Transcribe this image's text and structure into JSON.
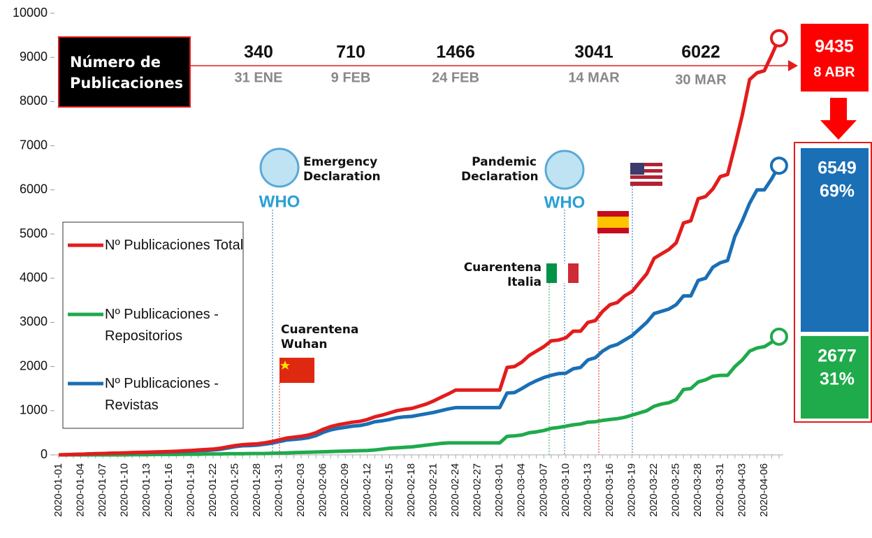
{
  "chart_data": {
    "type": "line",
    "title": "Número de Publicaciones",
    "categories": [
      "2020-01-01",
      null,
      null,
      "2020-01-04",
      null,
      null,
      "2020-01-07",
      null,
      null,
      "2020-01-10",
      null,
      null,
      "2020-01-13",
      null,
      null,
      "2020-01-16",
      null,
      null,
      "2020-01-19",
      null,
      null,
      "2020-01-22",
      null,
      null,
      "2020-01-25",
      null,
      null,
      "2020-01-28",
      null,
      null,
      "2020-01-31",
      null,
      null,
      "2020-02-03",
      null,
      null,
      "2020-02-06",
      null,
      null,
      "2020-02-09",
      null,
      null,
      "2020-02-12",
      null,
      null,
      "2020-02-15",
      null,
      null,
      "2020-02-18",
      null,
      null,
      "2020-02-21",
      null,
      null,
      "2020-02-24",
      null,
      null,
      "2020-02-27",
      null,
      null,
      "2020-03-01",
      null,
      null,
      "2020-03-04",
      null,
      null,
      "2020-03-07",
      null,
      null,
      "2020-03-10",
      null,
      null,
      "2020-03-13",
      null,
      null,
      "2020-03-16",
      null,
      null,
      "2020-03-19",
      null,
      null,
      "2020-03-22",
      null,
      null,
      "2020-03-25",
      null,
      null,
      "2020-03-28",
      null,
      null,
      "2020-03-31",
      null,
      null,
      "2020-04-03",
      null,
      null,
      "2020-04-06",
      null,
      null
    ],
    "series": [
      {
        "name": "Nº Publicaciones Total",
        "color": "#e31c1c",
        "values": [
          0,
          5,
          10,
          15,
          20,
          25,
          30,
          35,
          40,
          45,
          50,
          55,
          60,
          65,
          70,
          75,
          80,
          90,
          100,
          110,
          120,
          130,
          150,
          180,
          210,
          230,
          240,
          250,
          270,
          300,
          340,
          380,
          400,
          420,
          450,
          500,
          580,
          640,
          680,
          710,
          740,
          760,
          800,
          860,
          900,
          950,
          1000,
          1030,
          1050,
          1100,
          1150,
          1220,
          1300,
          1380,
          1466,
          1466,
          1466,
          1466,
          1466,
          1466,
          1466,
          1980,
          2000,
          2100,
          2250,
          2350,
          2450,
          2580,
          2600,
          2650,
          2800,
          2800,
          3000,
          3041,
          3250,
          3400,
          3450,
          3600,
          3700,
          3900,
          4100,
          4450,
          4550,
          4650,
          4800,
          5250,
          5300,
          5800,
          5850,
          6022,
          6300,
          6350,
          7000,
          7700,
          8500,
          8650,
          8700,
          9050,
          9435
        ]
      },
      {
        "name": "Nº Publicaciones - Repositorios",
        "color": "#1faa4b",
        "values": [
          0,
          0,
          0,
          0,
          0,
          0,
          0,
          0,
          0,
          0,
          5,
          5,
          5,
          10,
          10,
          10,
          10,
          15,
          15,
          15,
          20,
          20,
          20,
          25,
          25,
          25,
          30,
          30,
          30,
          35,
          40,
          45,
          50,
          55,
          60,
          65,
          70,
          75,
          80,
          85,
          90,
          95,
          100,
          110,
          130,
          150,
          160,
          170,
          180,
          200,
          220,
          240,
          260,
          270,
          270,
          270,
          270,
          270,
          270,
          270,
          270,
          420,
          430,
          450,
          500,
          520,
          550,
          600,
          620,
          650,
          680,
          700,
          740,
          750,
          780,
          800,
          820,
          850,
          900,
          950,
          1000,
          1100,
          1150,
          1180,
          1250,
          1480,
          1500,
          1650,
          1700,
          1780,
          1800,
          1800,
          2000,
          2150,
          2350,
          2420,
          2450,
          2550,
          2677
        ]
      },
      {
        "name": "Nº Publicaciones - Revistas",
        "color": "#1a6fb5",
        "values": [
          0,
          5,
          10,
          15,
          20,
          25,
          30,
          35,
          40,
          45,
          45,
          50,
          55,
          55,
          60,
          65,
          70,
          75,
          85,
          95,
          100,
          110,
          125,
          155,
          185,
          205,
          210,
          220,
          240,
          265,
          300,
          335,
          350,
          365,
          390,
          435,
          510,
          565,
          600,
          625,
          650,
          665,
          700,
          750,
          770,
          800,
          840,
          860,
          870,
          900,
          930,
          960,
          1000,
          1040,
          1070,
          1070,
          1070,
          1070,
          1070,
          1070,
          1070,
          1400,
          1410,
          1500,
          1600,
          1680,
          1750,
          1800,
          1840,
          1850,
          1950,
          1980,
          2150,
          2200,
          2350,
          2450,
          2500,
          2600,
          2700,
          2850,
          3000,
          3200,
          3250,
          3300,
          3400,
          3600,
          3600,
          3950,
          4000,
          4250,
          4350,
          4400,
          4950,
          5300,
          5700,
          6000,
          6000,
          6250,
          6549
        ]
      }
    ],
    "ylim": [
      0,
      10000
    ],
    "yticks": [
      0,
      1000,
      2000,
      3000,
      4000,
      5000,
      6000,
      7000,
      8000,
      9000,
      10000
    ],
    "milestones": [
      {
        "value": 340,
        "date": "31 ENE"
      },
      {
        "value": 710,
        "date": "9 FEB"
      },
      {
        "value": 1466,
        "date": "24 FEB"
      },
      {
        "value": 3041,
        "date": "14 MAR"
      },
      {
        "value": 6022,
        "date": "30 MAR"
      }
    ],
    "total_date": "8 ABR",
    "shares": [
      {
        "value": 69,
        "label": "69%"
      },
      {
        "value": 31,
        "label": "31%"
      }
    ],
    "events": [
      "Emergency Declaration",
      "Pandemic Declaration",
      "Cuarentena Wuhan",
      "Cuarentena Italia"
    ],
    "logo_text": "WHO"
  }
}
